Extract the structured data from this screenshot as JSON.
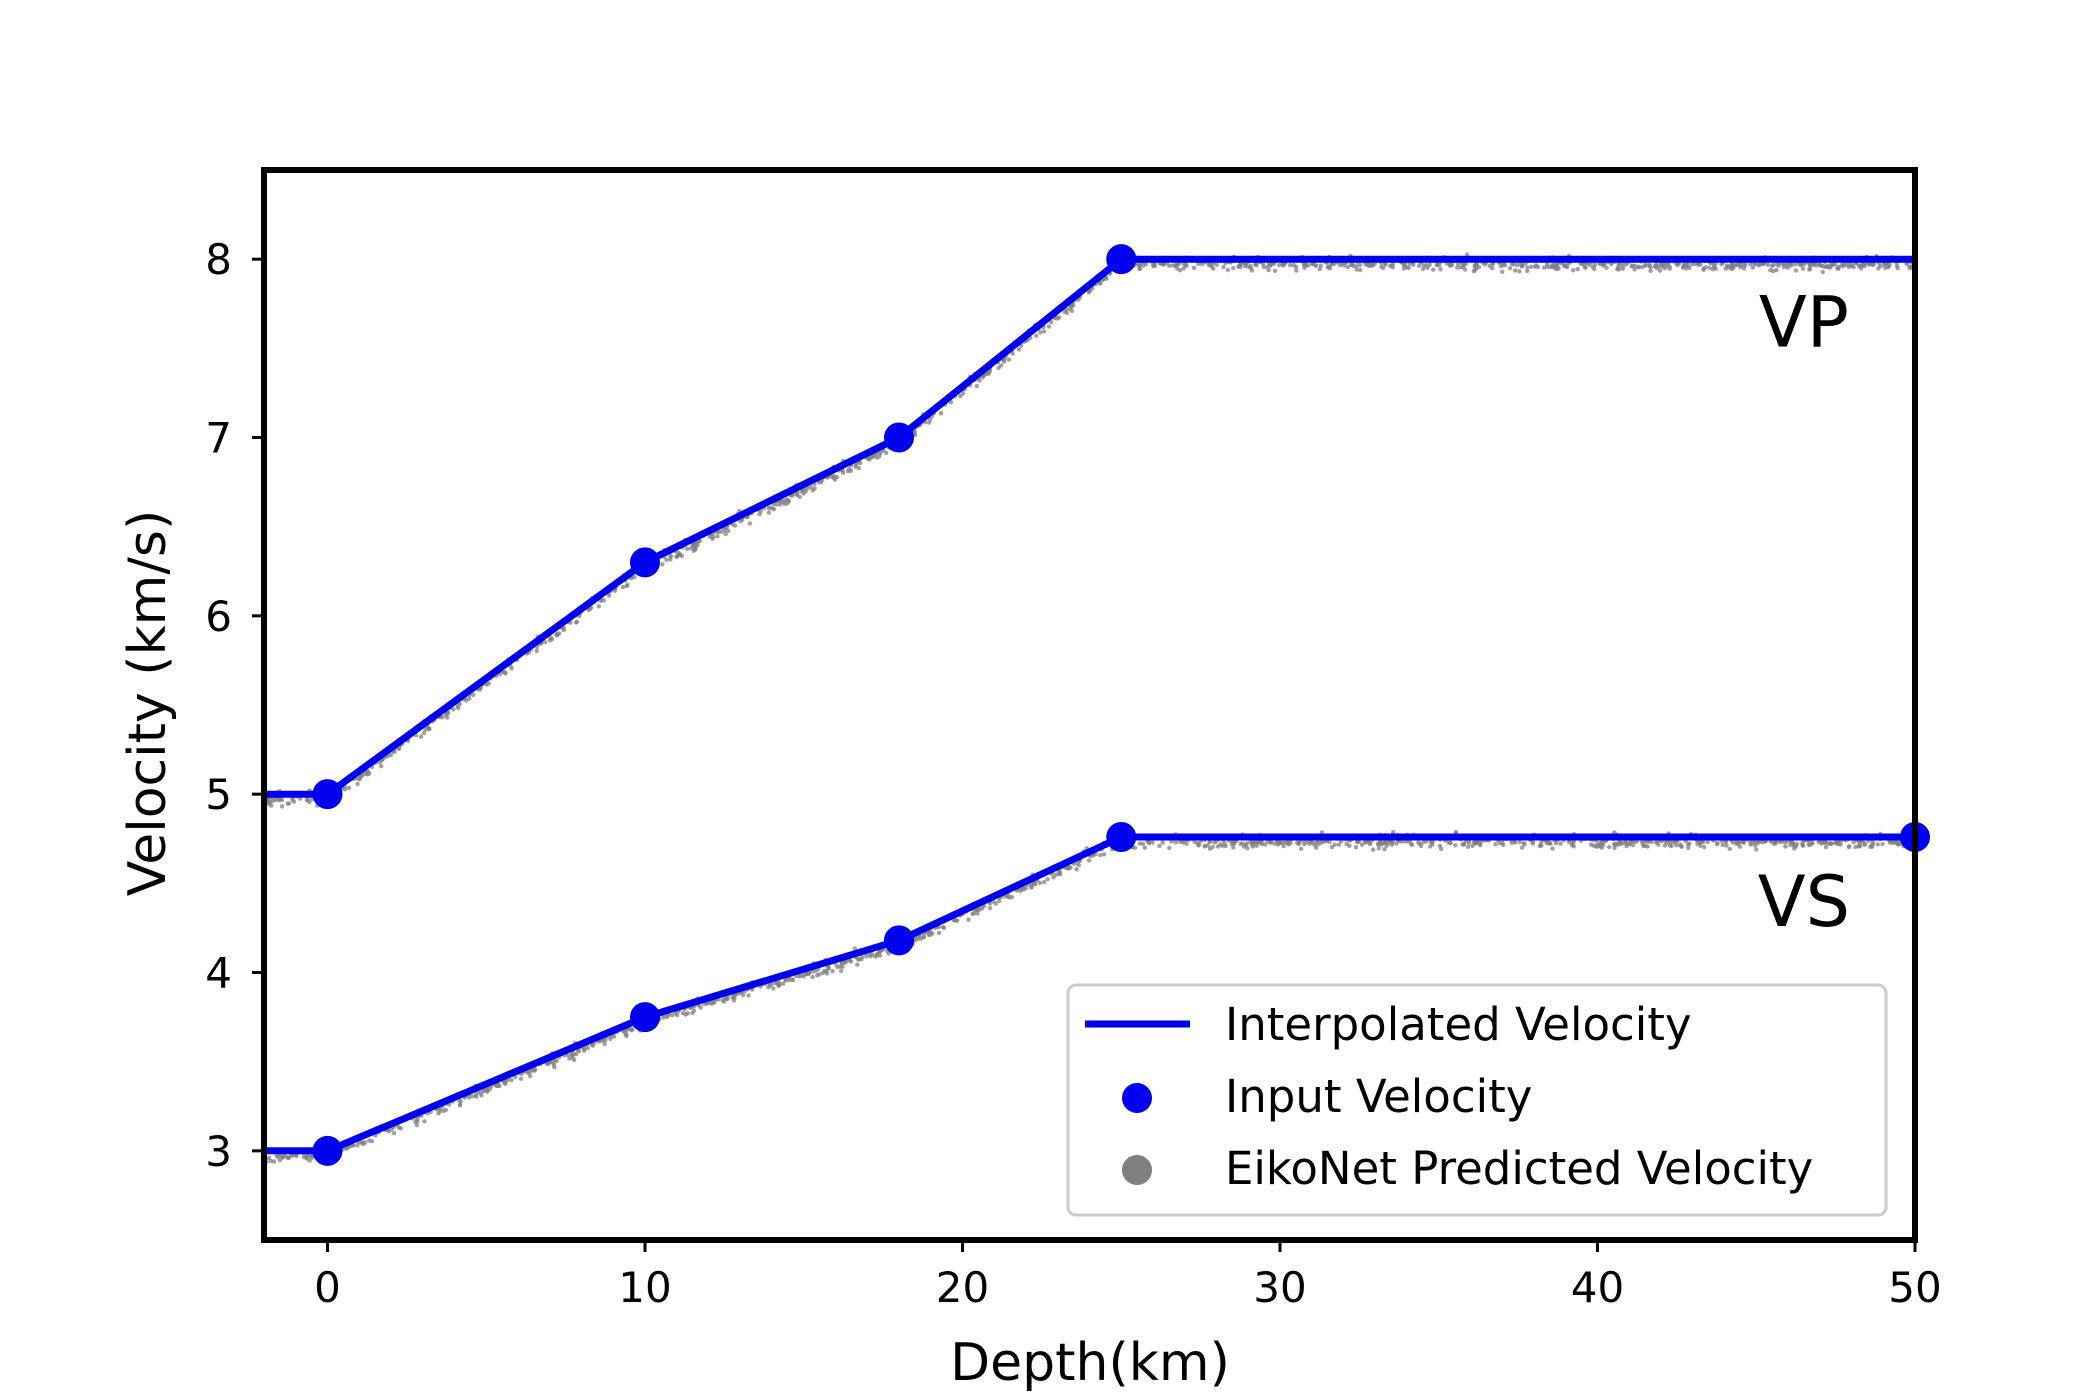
{
  "chart_data": {
    "type": "line",
    "xlabel": "Depth(km)",
    "ylabel": "Velocity (km/s)",
    "xlim": [
      -2,
      50
    ],
    "ylim": [
      2.5,
      8.5
    ],
    "xticks": [
      0,
      10,
      20,
      30,
      40,
      50
    ],
    "yticks": [
      3,
      4,
      5,
      6,
      7,
      8
    ],
    "grid": false,
    "legend_position": "bottom-right",
    "colors": {
      "interpolated": "#0000ee",
      "input": "#0000ee",
      "predicted": "#808080"
    },
    "series": [
      {
        "name": "VP",
        "interpolated": {
          "x": [
            -2,
            0,
            10,
            18,
            25,
            50
          ],
          "y": [
            5.0,
            5.0,
            6.3,
            7.0,
            8.0,
            8.0
          ]
        },
        "input": {
          "x": [
            0,
            10,
            18,
            25
          ],
          "y": [
            5.0,
            6.3,
            7.0,
            8.0
          ]
        }
      },
      {
        "name": "VS",
        "interpolated": {
          "x": [
            -2,
            0,
            10,
            18,
            25,
            50
          ],
          "y": [
            3.0,
            3.0,
            3.75,
            4.18,
            4.76,
            4.76
          ]
        },
        "input": {
          "x": [
            0,
            10,
            18,
            25,
            50
          ],
          "y": [
            3.0,
            3.75,
            4.18,
            4.76,
            4.76
          ]
        }
      }
    ],
    "annotations": [
      {
        "text": "VP",
        "x": 46.5,
        "y": 7.65
      },
      {
        "text": "VS",
        "x": 46.5,
        "y": 4.4
      }
    ],
    "legend": [
      {
        "label": "Interpolated Velocity",
        "marker": "line"
      },
      {
        "label": "Input Velocity",
        "marker": "blue-dot"
      },
      {
        "label": "EikoNet Predicted Velocity",
        "marker": "gray-dot"
      }
    ]
  }
}
